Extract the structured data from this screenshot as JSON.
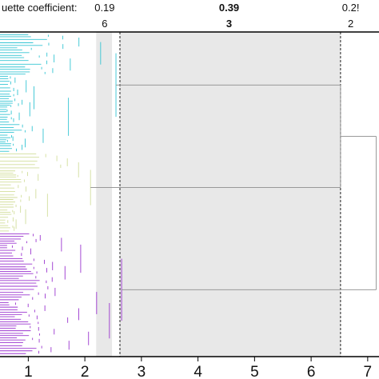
{
  "chart_data": {
    "type": "dendrogram",
    "silhouette": {
      "label": "uette coefficient:",
      "entries": [
        {
          "x": 2.35,
          "value": "0.19",
          "bold": false
        },
        {
          "x": 4.55,
          "value": "0.39",
          "bold": true
        },
        {
          "x": 6.7,
          "value": "0.2!",
          "bold": false
        }
      ]
    },
    "cluster_counts": [
      {
        "x": 2.35,
        "label": "6",
        "bold": false
      },
      {
        "x": 4.55,
        "label": "3",
        "bold": true
      },
      {
        "x": 6.7,
        "label": "2",
        "bold": false
      }
    ],
    "cut_lines": [
      2.62,
      6.52
    ],
    "shaded_bands": [
      [
        2.2,
        2.48
      ],
      [
        2.62,
        6.52
      ]
    ],
    "xlim": [
      0.5,
      7.2
    ],
    "x_ticks": [
      1,
      2,
      3,
      4,
      5,
      6,
      7
    ],
    "x_tick_labels": [
      "1",
      "2",
      "3",
      "4",
      "5",
      "6",
      "7"
    ],
    "clusters": [
      {
        "name": "cyan",
        "color": "#35c5d3",
        "leaf_range": [
          0,
          0.37
        ],
        "merge_height": 2.55,
        "join_y": 0.21
      },
      {
        "name": "yellow-green",
        "color": "#d2de9c",
        "leaf_range": [
          0.37,
          0.62
        ],
        "merge_height": 2.1,
        "join_y": 0.5
      },
      {
        "name": "purple",
        "color": "#9b36cf",
        "leaf_range": [
          0.62,
          1.0
        ],
        "merge_height": 2.65,
        "join_y": 0.8
      }
    ],
    "upper_links": [
      {
        "x": 6.52,
        "from_y": 0.21,
        "to_y": 0.5,
        "node_y": 0.405
      },
      {
        "x": 7.15,
        "from_y": 0.405,
        "to_y": 0.8,
        "node_y": 0.5
      }
    ],
    "link_color": "#999999"
  }
}
